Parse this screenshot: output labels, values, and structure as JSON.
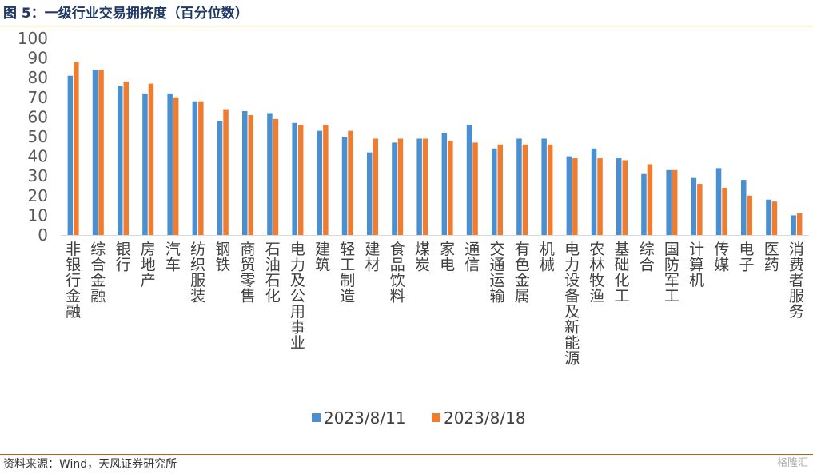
{
  "header": {
    "title": "图 5：一级行业交易拥挤度（百分位数）"
  },
  "footer": {
    "source": "资料来源：Wind，天风证券研究所",
    "watermark": "格隆汇"
  },
  "colors": {
    "series_1": "#4a90d0",
    "series_2": "#ee7d31",
    "rule": "#c55a11",
    "title": "#1f3864"
  },
  "chart_data": {
    "type": "bar",
    "title": "图 5：一级行业交易拥挤度（百分位数）",
    "xlabel": "",
    "ylabel": "",
    "ylim": [
      0,
      100
    ],
    "yticks": [
      0,
      10,
      20,
      30,
      40,
      50,
      60,
      70,
      80,
      90,
      100
    ],
    "grid": false,
    "legend_position": "bottom",
    "categories": [
      "非银行金融",
      "综合金融",
      "银行",
      "房地产",
      "汽车",
      "纺织服装",
      "钢铁",
      "商贸零售",
      "石油石化",
      "电力及公用事业",
      "建筑",
      "轻工制造",
      "建材",
      "食品饮料",
      "煤炭",
      "家电",
      "通信",
      "交通运输",
      "有色金属",
      "机械",
      "电力设备及新能源",
      "农林牧渔",
      "基础化工",
      "综合",
      "国防军工",
      "计算机",
      "传媒",
      "电子",
      "医药",
      "消费者服务"
    ],
    "series": [
      {
        "name": "2023/8/11",
        "values": [
          81,
          84,
          76,
          72,
          72,
          68,
          58,
          63,
          62,
          57,
          53,
          50,
          42,
          47,
          49,
          52,
          56,
          44,
          49,
          49,
          40,
          44,
          39,
          31,
          33,
          29,
          34,
          28,
          18,
          10
        ]
      },
      {
        "name": "2023/8/18",
        "values": [
          88,
          84,
          78,
          77,
          70,
          68,
          64,
          61,
          59,
          56,
          56,
          53,
          49,
          49,
          49,
          48,
          47,
          46,
          46,
          46,
          39,
          39,
          38,
          36,
          33,
          26,
          24,
          20,
          17,
          11
        ]
      }
    ]
  }
}
